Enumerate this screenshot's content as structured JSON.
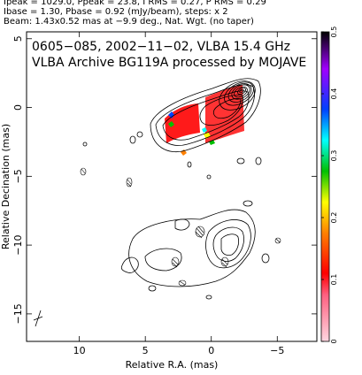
{
  "header": {
    "line1": "Ipeak = 1029.0, Ppeak = 23.8, I RMS = 0.27, P RMS = 0.29",
    "line2": "Ibase = 1.30, Pbase = 0.92 (mJy/beam), steps: x 2",
    "line3": "Beam: 1.43x0.52 mas at −9.9 deg., Nat. Wgt. (no taper)"
  },
  "chart_data": {
    "type": "heatmap",
    "title_line1": "0605−085, 2002−11−02, VLBA 15.4 GHz",
    "title_line2": "VLBA Archive BG119A processed by MOJAVE",
    "xlabel": "Relative R.A. (mas)",
    "ylabel": "Relative Decination (mas)",
    "xlim": [
      14,
      -8
    ],
    "ylim": [
      -17,
      5.5
    ],
    "xticks": [
      10,
      5,
      0,
      -5
    ],
    "xtick_labels": [
      "10",
      "5",
      "0",
      "−5"
    ],
    "yticks": [
      5,
      0,
      -5,
      -10,
      -15
    ],
    "ytick_labels": [
      "5",
      "0",
      "−5",
      "−10",
      "−15"
    ],
    "colorbar": {
      "range": [
        0,
        0.5
      ],
      "ticks": [
        0,
        0.1,
        0.2,
        0.3,
        0.4,
        0.5
      ],
      "tick_labels": [
        "0",
        "0.1",
        "0.2",
        "0.3",
        "0.4",
        "0.5"
      ]
    },
    "colors": {
      "stops": [
        "#ffd6e0",
        "#ff0000",
        "#ff8000",
        "#ffff00",
        "#00c000",
        "#00ffff",
        "#0040ff",
        "#a000ff",
        "#000000"
      ]
    }
  }
}
